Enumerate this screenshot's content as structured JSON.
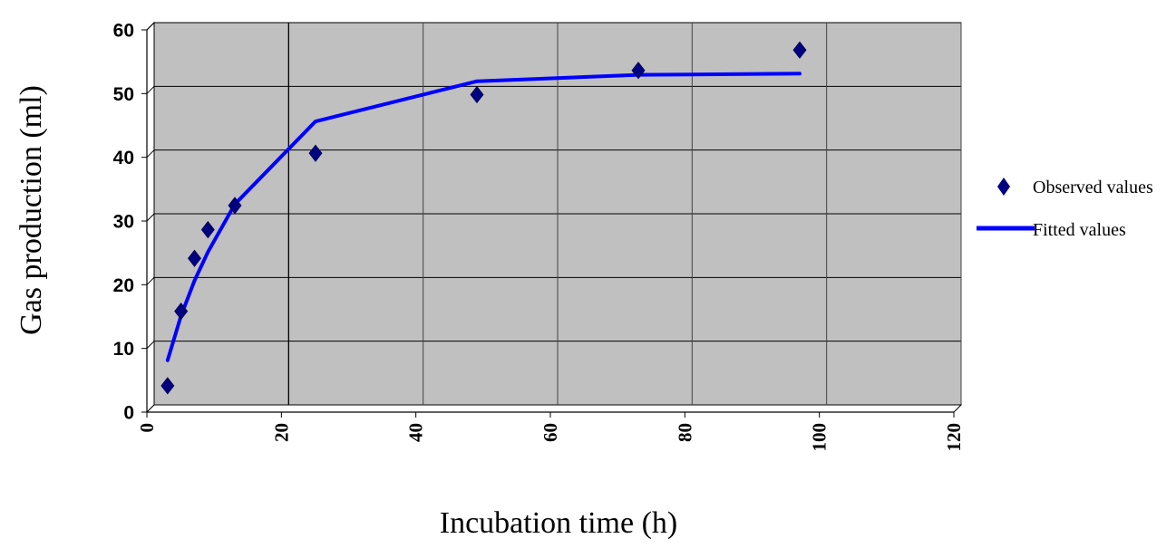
{
  "chart_data": {
    "type": "scatter",
    "title": "",
    "xlabel": "Incubation time (h)",
    "ylabel": "Gas production (ml)",
    "xlim": [
      0,
      120
    ],
    "ylim": [
      0,
      60
    ],
    "x_ticks": [
      0,
      20,
      40,
      60,
      80,
      100,
      120
    ],
    "y_ticks": [
      0,
      10,
      20,
      30,
      40,
      50,
      60
    ],
    "x_tick_labels": [
      "0",
      "20",
      "40",
      "60",
      "80",
      "100",
      "120"
    ],
    "y_tick_labels": [
      "0",
      "10",
      "20",
      "30",
      "40",
      "50",
      "60"
    ],
    "grid": true,
    "plot_background": "#c0c0c0",
    "legend_position": "right",
    "series": [
      {
        "name": "Observed values",
        "kind": "scatter",
        "marker": "diamond",
        "color": "#000080",
        "x": [
          2,
          4,
          6,
          8,
          12,
          24,
          48,
          72,
          96
        ],
        "y": [
          3,
          14.7,
          23,
          27.5,
          31.3,
          39.5,
          48.7,
          52.5,
          55.7
        ]
      },
      {
        "name": "Fitted values",
        "kind": "line",
        "color": "#0000ff",
        "x": [
          2,
          4,
          6,
          8,
          12,
          24,
          48,
          72,
          96
        ],
        "y": [
          7,
          14,
          19.5,
          24,
          31.5,
          44.5,
          50.8,
          51.8,
          52
        ]
      }
    ]
  }
}
